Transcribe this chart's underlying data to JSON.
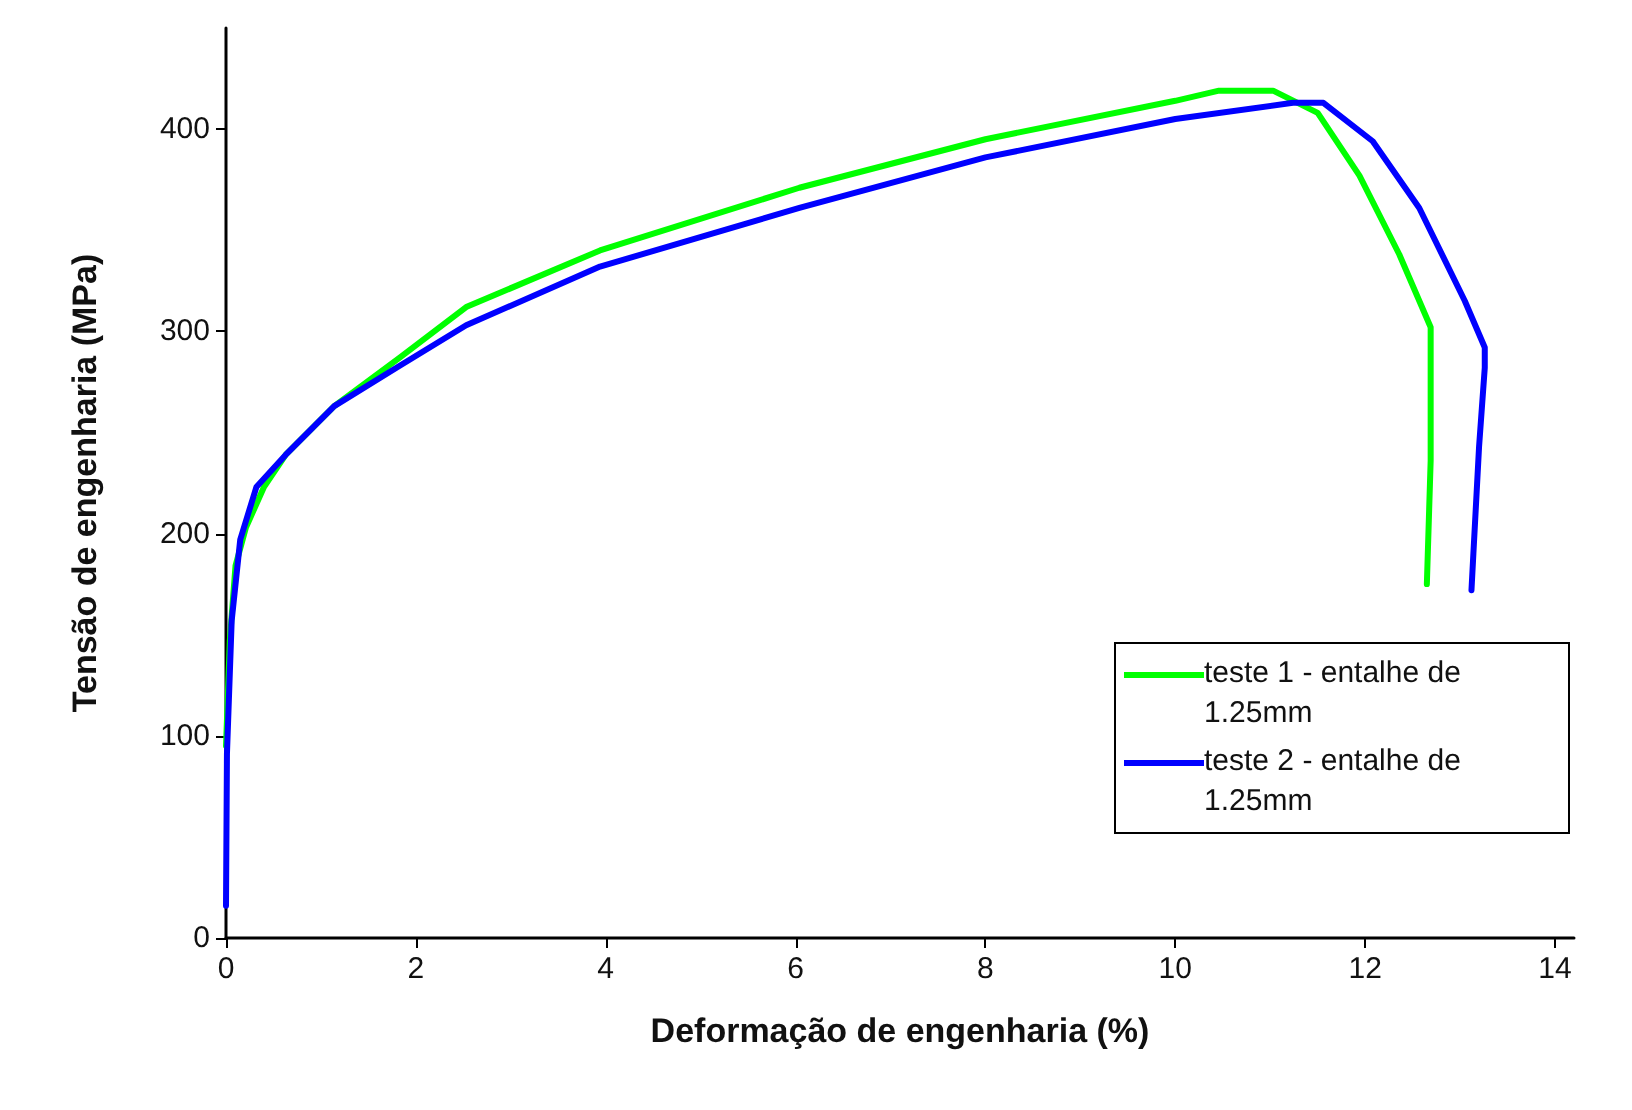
{
  "chart_data": {
    "type": "line",
    "xlabel": "Deformação de engenharia (%)",
    "ylabel": "Tensão de engenharia (MPa)",
    "xlim": [
      0,
      14.2
    ],
    "xticks": [
      0,
      2,
      4,
      6,
      8,
      10,
      12,
      14
    ],
    "ylim": [
      0,
      450
    ],
    "yticks": [
      0,
      100,
      200,
      300,
      400
    ],
    "grid": false,
    "legend": "bottom right",
    "marker": "none",
    "line_style": "solid",
    "series": [
      {
        "name": "teste 1 - entalhe de 1.25mm",
        "color": "#00ff00",
        "x": [
          0,
          0.04,
          0.1,
          0.21,
          0.4,
          0.63,
          1.14,
          1.83,
          2.53,
          3.94,
          6.04,
          8,
          10,
          10.46,
          11.03,
          11.5,
          11.94,
          12.36,
          12.69,
          12.69,
          12.65
        ],
        "values": [
          95,
          147,
          184,
          203,
          223,
          239,
          263,
          287,
          312,
          340,
          371,
          395,
          414,
          419,
          419,
          408,
          377,
          338,
          302,
          236,
          175
        ]
      },
      {
        "name": "teste 2 - entalhe de 1.25mm",
        "color": "#0000ff",
        "x": [
          0,
          0.01,
          0.06,
          0.15,
          0.32,
          0.63,
          1.14,
          1.83,
          2.53,
          3.94,
          6.04,
          8,
          10,
          11.24,
          11.56,
          12.08,
          12.57,
          13.05,
          13.26,
          13.26,
          13.2,
          13.14,
          13.12
        ],
        "values": [
          16,
          91,
          157,
          197,
          223,
          239,
          263,
          283,
          303,
          332,
          361,
          386,
          405,
          413,
          413,
          394,
          361,
          315,
          292,
          282,
          243,
          190,
          172
        ]
      }
    ]
  }
}
